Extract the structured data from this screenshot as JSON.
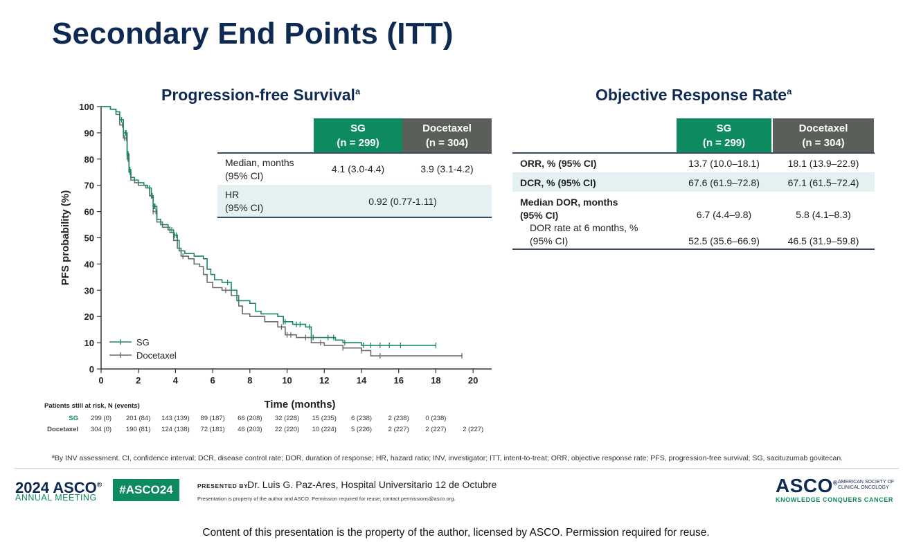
{
  "slide": {
    "title": "Secondary End Points (ITT)"
  },
  "pfs": {
    "title": "Progression-free Survival",
    "title_sup": "a",
    "table": {
      "header_sg": [
        "SG",
        "(n = 299)"
      ],
      "header_doc": [
        "Docetaxel",
        "(n = 304)"
      ],
      "row1_label": [
        "Median, months",
        "(95% CI)"
      ],
      "row1_sg": "4.1 (3.0-4.4)",
      "row1_doc": "3.9 (3.1-4.2)",
      "row2_label": [
        "HR",
        "(95% CI)"
      ],
      "row2_value": "0.92 (0.77-1.11)"
    },
    "risk_table": {
      "title": "Patients still at risk, N (events)",
      "sg_label": "SG",
      "doc_label": "Docetaxel",
      "sg": [
        "299 (0)",
        "201 (84)",
        "143 (139)",
        "89 (187)",
        "66 (208)",
        "32 (228)",
        "15 (235)",
        "6 (238)",
        "2 (238)",
        "0 (238)"
      ],
      "doc": [
        "304 (0)",
        "190 (81)",
        "124 (138)",
        "72 (181)",
        "46 (203)",
        "22 (220)",
        "10 (224)",
        "5 (226)",
        "2 (227)",
        "2 (227)",
        "2 (227)"
      ]
    }
  },
  "orr": {
    "title": "Objective Response Rate",
    "title_sup": "a",
    "header_sg": [
      "SG",
      "(n = 299)"
    ],
    "header_doc": [
      "Docetaxel",
      "(n = 304)"
    ],
    "rows": [
      {
        "label": "ORR, % (95% CI)",
        "sg": "13.7 (10.0–18.1)",
        "doc": "18.1 (13.9–22.9)"
      },
      {
        "label": "DCR, % (95% CI)",
        "sg": "67.6 (61.9–72.8)",
        "doc": "67.1 (61.5–72.4)"
      },
      {
        "label": "Median DOR, months",
        "label2": "(95% CI)",
        "sg": "6.7 (4.4–9.8)",
        "doc": "5.8 (4.1–8.3)"
      },
      {
        "label": "DOR rate at 6 months, %",
        "label2": "(95% CI)",
        "sg": "52.5 (35.6–66.9)",
        "doc": "46.5 (31.9–59.8)"
      }
    ]
  },
  "chart_data": {
    "type": "line",
    "title": "Progression-free Survival",
    "xlabel": "Time (months)",
    "ylabel": "PFS probability (%)",
    "xlim": [
      0,
      21
    ],
    "ylim": [
      0,
      100
    ],
    "xticks": [
      0,
      2,
      4,
      6,
      8,
      10,
      12,
      14,
      16,
      18,
      20
    ],
    "yticks": [
      0,
      10,
      20,
      30,
      40,
      50,
      60,
      70,
      80,
      90,
      100
    ],
    "legend_position": "bottom-left",
    "step": true,
    "series": [
      {
        "name": "SG",
        "color": "#1a8a5a",
        "points": [
          [
            0,
            100
          ],
          [
            0.5,
            99
          ],
          [
            0.8,
            98
          ],
          [
            1.0,
            95
          ],
          [
            1.2,
            90
          ],
          [
            1.4,
            82
          ],
          [
            1.5,
            76
          ],
          [
            1.6,
            73
          ],
          [
            1.8,
            72
          ],
          [
            2.0,
            71
          ],
          [
            2.3,
            70
          ],
          [
            2.5,
            69
          ],
          [
            2.7,
            66
          ],
          [
            2.8,
            62
          ],
          [
            3.0,
            57
          ],
          [
            3.2,
            55
          ],
          [
            3.6,
            53
          ],
          [
            3.9,
            51
          ],
          [
            4.1,
            49
          ],
          [
            4.2,
            45
          ],
          [
            4.5,
            44
          ],
          [
            5.0,
            43
          ],
          [
            5.5,
            42
          ],
          [
            5.7,
            38
          ],
          [
            5.9,
            36
          ],
          [
            6.1,
            34
          ],
          [
            6.5,
            33
          ],
          [
            7.0,
            30
          ],
          [
            7.3,
            26
          ],
          [
            8.0,
            25
          ],
          [
            8.3,
            22
          ],
          [
            8.6,
            21
          ],
          [
            9.0,
            21
          ],
          [
            9.5,
            20
          ],
          [
            9.8,
            18
          ],
          [
            10.3,
            17
          ],
          [
            11.0,
            16
          ],
          [
            11.3,
            12
          ],
          [
            12.0,
            12
          ],
          [
            12.6,
            11
          ],
          [
            13.0,
            10
          ],
          [
            14.0,
            9
          ],
          [
            16.0,
            9
          ],
          [
            17.0,
            9
          ],
          [
            18.0,
            9
          ]
        ],
        "censor_x": [
          1.1,
          1.2,
          1.3,
          1.35,
          1.4,
          1.45,
          1.5,
          1.55,
          2.6,
          2.75,
          2.85,
          2.9,
          3.8,
          3.95,
          4.05,
          6.8,
          9.8,
          9.9,
          10.5,
          10.7,
          11.2,
          11.4,
          12.2,
          12.5,
          13.1,
          14.1,
          14.5,
          15.0,
          15.5,
          16.1,
          18.0
        ]
      },
      {
        "name": "Docetaxel",
        "color": "#6b6b6b",
        "points": [
          [
            0,
            100
          ],
          [
            0.5,
            99
          ],
          [
            0.8,
            97
          ],
          [
            1.0,
            93
          ],
          [
            1.2,
            88
          ],
          [
            1.4,
            80
          ],
          [
            1.5,
            75
          ],
          [
            1.6,
            72
          ],
          [
            1.8,
            71
          ],
          [
            2.0,
            70
          ],
          [
            2.4,
            69
          ],
          [
            2.6,
            66
          ],
          [
            2.8,
            60
          ],
          [
            3.0,
            56
          ],
          [
            3.3,
            54
          ],
          [
            3.7,
            52
          ],
          [
            3.9,
            49
          ],
          [
            4.1,
            46
          ],
          [
            4.3,
            43
          ],
          [
            4.7,
            42
          ],
          [
            5.0,
            40
          ],
          [
            5.3,
            39
          ],
          [
            5.5,
            36
          ],
          [
            5.7,
            33
          ],
          [
            6.0,
            31
          ],
          [
            6.5,
            30
          ],
          [
            7.0,
            28
          ],
          [
            7.4,
            24
          ],
          [
            7.6,
            21
          ],
          [
            8.0,
            20
          ],
          [
            8.8,
            18
          ],
          [
            9.5,
            16
          ],
          [
            9.9,
            13
          ],
          [
            10.5,
            12
          ],
          [
            11.0,
            12
          ],
          [
            11.3,
            10
          ],
          [
            12.0,
            9
          ],
          [
            13.0,
            8
          ],
          [
            14.0,
            7
          ],
          [
            14.5,
            5
          ],
          [
            16.0,
            5
          ],
          [
            18.0,
            5
          ],
          [
            19.4,
            5
          ]
        ],
        "censor_x": [
          1.15,
          1.25,
          1.35,
          1.45,
          1.55,
          2.7,
          2.8,
          2.95,
          4.2,
          4.4,
          6.7,
          9.7,
          10.0,
          10.2,
          11.0,
          11.8,
          13.0,
          14.0,
          15.0,
          19.4
        ]
      }
    ]
  },
  "footnote": "ªBy INV assessment. CI, confidence interval; DCR, disease control rate; DOR, duration of response; HR, hazard ratio; INV, investigator; ITT, intent-to-treat; ORR, objective response rate; PFS, progression-free survival; SG, sacituzumab govitecan.",
  "footer": {
    "year_asco": "2024 ASCO",
    "reg": "®",
    "annual_meeting": "ANNUAL MEETING",
    "hashtag": "#ASCO24",
    "presented_by": "PRESENTED BY:",
    "presenter": "Dr. Luis G. Paz-Ares, Hospital Universitario 12 de Octubre",
    "property_note": "Presentation is property of the author and ASCO. Permission required for reuse; contact permissions@asco.org.",
    "asco_logo": "ASCO",
    "asco_society": "AMERICAN SOCIETY OF CLINICAL ONCOLOGY",
    "tagline": "KNOWLEDGE CONQUERS CANCER"
  },
  "bottom_note": "Content of this presentation is the property of the author, licensed by ASCO. Permission required for reuse."
}
